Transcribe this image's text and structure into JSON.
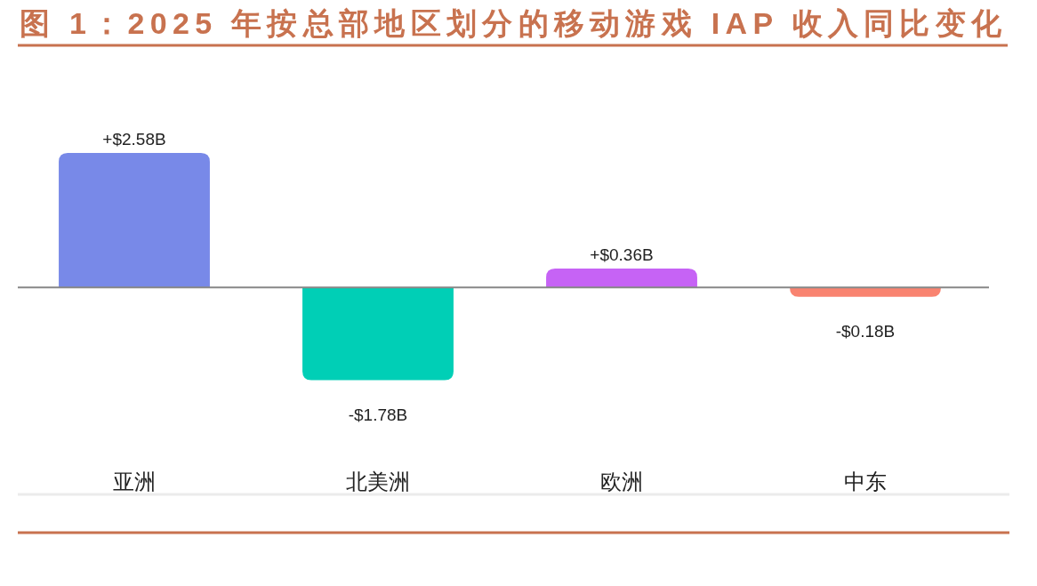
{
  "chart_data": {
    "type": "bar",
    "title": "图 1：2025 年按总部地区划分的移动游戏 IAP 收入同比变化",
    "categories": [
      "亚洲",
      "北美洲",
      "欧洲",
      "中东"
    ],
    "values": [
      2.58,
      -1.78,
      0.36,
      -0.18
    ],
    "colors": [
      "#7889e8",
      "#00cfb6",
      "#c663f5",
      "#f98370"
    ],
    "value_labels": [
      "+$2.58B",
      "-$1.78B",
      "+$0.36B",
      "-$0.18B"
    ]
  }
}
